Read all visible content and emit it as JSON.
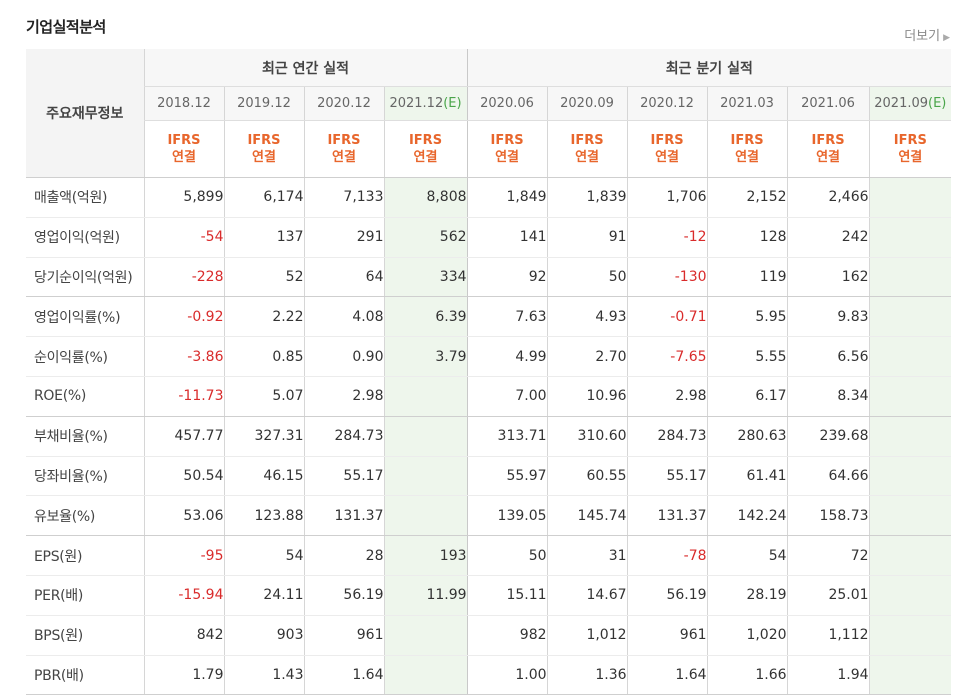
{
  "title": "기업실적분석",
  "more_label": "더보기",
  "corner_label": "주요재무정보",
  "groups": {
    "annual": "최근 연간 실적",
    "quarterly": "최근 분기 실적"
  },
  "annual_periods": [
    "2018.12",
    "2019.12",
    "2020.12",
    "2021.12"
  ],
  "annual_est_tag": "(E)",
  "quarterly_periods": [
    "2020.06",
    "2020.09",
    "2020.12",
    "2021.03",
    "2021.06",
    "2021.09"
  ],
  "quarterly_est_tag": "(E)",
  "ifrs": {
    "line1": "IFRS",
    "line2": "연결"
  },
  "rows": [
    {
      "label": "매출액(억원)",
      "values": [
        "5,899",
        "6,174",
        "7,133",
        "8,808",
        "1,849",
        "1,839",
        "1,706",
        "2,152",
        "2,466",
        ""
      ]
    },
    {
      "label": "영업이익(억원)",
      "values": [
        "-54",
        "137",
        "291",
        "562",
        "141",
        "91",
        "-12",
        "128",
        "242",
        ""
      ]
    },
    {
      "label": "당기순이익(억원)",
      "values": [
        "-228",
        "52",
        "64",
        "334",
        "92",
        "50",
        "-130",
        "119",
        "162",
        ""
      ]
    },
    {
      "label": "영업이익률(%)",
      "values": [
        "-0.92",
        "2.22",
        "4.08",
        "6.39",
        "7.63",
        "4.93",
        "-0.71",
        "5.95",
        "9.83",
        ""
      ]
    },
    {
      "label": "순이익률(%)",
      "values": [
        "-3.86",
        "0.85",
        "0.90",
        "3.79",
        "4.99",
        "2.70",
        "-7.65",
        "5.55",
        "6.56",
        ""
      ]
    },
    {
      "label": "ROE(%)",
      "values": [
        "-11.73",
        "5.07",
        "2.98",
        "",
        "7.00",
        "10.96",
        "2.98",
        "6.17",
        "8.34",
        ""
      ]
    },
    {
      "label": "부채비율(%)",
      "values": [
        "457.77",
        "327.31",
        "284.73",
        "",
        "313.71",
        "310.60",
        "284.73",
        "280.63",
        "239.68",
        ""
      ]
    },
    {
      "label": "당좌비율(%)",
      "values": [
        "50.54",
        "46.15",
        "55.17",
        "",
        "55.97",
        "60.55",
        "55.17",
        "61.41",
        "64.66",
        ""
      ]
    },
    {
      "label": "유보율(%)",
      "values": [
        "53.06",
        "123.88",
        "131.37",
        "",
        "139.05",
        "145.74",
        "131.37",
        "142.24",
        "158.73",
        ""
      ]
    },
    {
      "label": "EPS(원)",
      "values": [
        "-95",
        "54",
        "28",
        "193",
        "50",
        "31",
        "-78",
        "54",
        "72",
        ""
      ]
    },
    {
      "label": "PER(배)",
      "values": [
        "-15.94",
        "24.11",
        "56.19",
        "11.99",
        "15.11",
        "14.67",
        "56.19",
        "28.19",
        "25.01",
        ""
      ]
    },
    {
      "label": "BPS(원)",
      "values": [
        "842",
        "903",
        "961",
        "",
        "982",
        "1,012",
        "961",
        "1,020",
        "1,112",
        ""
      ]
    },
    {
      "label": "PBR(배)",
      "values": [
        "1.79",
        "1.43",
        "1.64",
        "",
        "1.00",
        "1.36",
        "1.64",
        "1.66",
        "1.94",
        ""
      ]
    }
  ],
  "colors": {
    "negative": "#d92b2b",
    "ifrs": "#e8662c",
    "estimate_bg": "#eef6ec"
  }
}
